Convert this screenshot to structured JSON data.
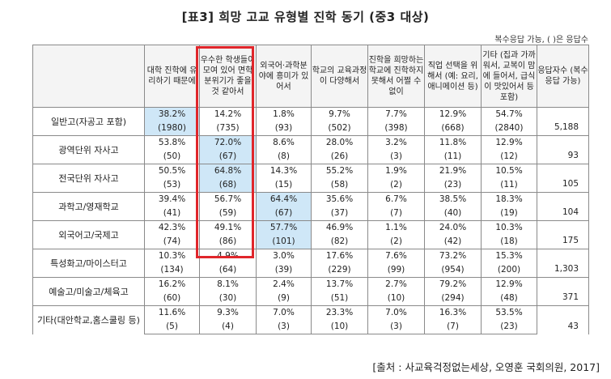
{
  "title": "[표3] 희망 고교 유형별 진학 동기 (중3 대상)",
  "note": "복수응답 가능, ( )은 응답수",
  "source": "[출처 : 사교육걱정없는세상, 오영훈 국회의원, 2017]",
  "columns": [
    "",
    "대학 진학에 유리하기 때문에",
    "우수한 학생들이 모여 있어 면학 분위기가 좋을 것 같아서",
    "외국어·과학분야에 흥미가 있어서",
    "학교의 교육과정이 다양해서",
    "진학을 희망하는 학교에 진학하지 못해서 어쩔 수 없이",
    "직업 선택을 위해서 (예: 요리, 애니메이션 등)",
    "기타 (집과 가까워서, 교복이 맘에 들어서, 급식이 맛있어서 등 포함)",
    "응답자수 (복수응답 가능)"
  ],
  "rows": [
    {
      "label": "일반고(자공고 포함)",
      "pct": [
        "38.2%",
        "14.2%",
        "1.8%",
        "9.7%",
        "7.7%",
        "12.9%",
        "54.7%"
      ],
      "cnt": [
        "(1980)",
        "(735)",
        "(93)",
        "(502)",
        "(398)",
        "(668)",
        "(2840)"
      ],
      "total": "5,188"
    },
    {
      "label": "광역단위 자사고",
      "pct": [
        "53.8%",
        "72.0%",
        "8.6%",
        "28.0%",
        "3.2%",
        "11.8%",
        "12.9%"
      ],
      "cnt": [
        "(50)",
        "(67)",
        "(8)",
        "(26)",
        "(3)",
        "(11)",
        "(12)"
      ],
      "total": "93"
    },
    {
      "label": "전국단위 자사고",
      "pct": [
        "50.5%",
        "64.8%",
        "14.3%",
        "55.2%",
        "1.9%",
        "21.9%",
        "10.5%"
      ],
      "cnt": [
        "(53)",
        "(68)",
        "(15)",
        "(58)",
        "(2)",
        "(23)",
        "(11)"
      ],
      "total": "105"
    },
    {
      "label": "과학고/영재학교",
      "pct": [
        "39.4%",
        "56.7%",
        "64.4%",
        "35.6%",
        "6.7%",
        "38.5%",
        "18.3%"
      ],
      "cnt": [
        "(41)",
        "(59)",
        "(67)",
        "(37)",
        "(7)",
        "(40)",
        "(19)"
      ],
      "total": "104"
    },
    {
      "label": "외국어고/국제고",
      "pct": [
        "42.3%",
        "49.1%",
        "57.7%",
        "46.9%",
        "1.1%",
        "24.0%",
        "10.3%"
      ],
      "cnt": [
        "(74)",
        "(86)",
        "(101)",
        "(82)",
        "(2)",
        "(42)",
        "(18)"
      ],
      "total": "175"
    },
    {
      "label": "특성화고/마이스터고",
      "pct": [
        "10.3%",
        "4.9%",
        "3.0%",
        "17.6%",
        "7.6%",
        "73.2%",
        "15.3%"
      ],
      "cnt": [
        "(134)",
        "(64)",
        "(39)",
        "(229)",
        "(99)",
        "(954)",
        "(200)"
      ],
      "total": "1,303"
    },
    {
      "label": "예술고/미술고/체육고",
      "pct": [
        "16.2%",
        "8.1%",
        "2.4%",
        "13.7%",
        "2.7%",
        "79.2%",
        "12.9%"
      ],
      "cnt": [
        "(60)",
        "(30)",
        "(9)",
        "(51)",
        "(10)",
        "(294)",
        "(48)"
      ],
      "total": "371"
    },
    {
      "label": "기타(대안학교,홈스쿨링 등)",
      "pct": [
        "11.6%",
        "9.3%",
        "7.0%",
        "23.3%",
        "7.0%",
        "16.3%",
        "53.5%"
      ],
      "cnt": [
        "(5)",
        "(4)",
        "(3)",
        "(10)",
        "(3)",
        "(7)",
        "(23)"
      ],
      "total": "43"
    }
  ],
  "highlights": [
    [
      0,
      0
    ],
    [
      1,
      1
    ],
    [
      2,
      1
    ],
    [
      3,
      2
    ],
    [
      4,
      2
    ]
  ],
  "highlight_color": "#cfe7f7",
  "box_color": "#e0262b"
}
